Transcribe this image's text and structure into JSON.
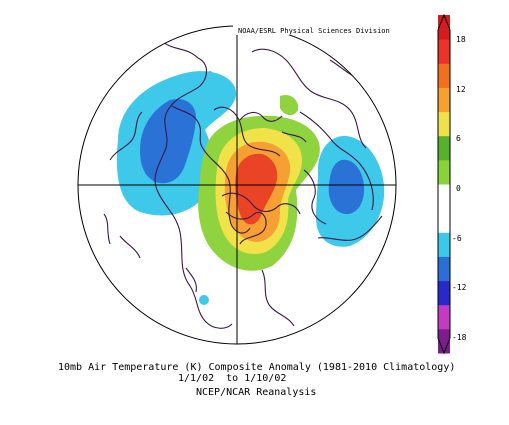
{
  "credit": "NOAA/ESRL Physical Sciences Division",
  "title": "10mb Air Temperature (K) Composite Anomaly (1981-2010 Climatology)",
  "dates": "1/1/02  to 1/10/02",
  "source": "NCEP/NCAR Reanalysis",
  "colorbar": {
    "labels": [
      "18",
      "12",
      "6",
      "0",
      "-6",
      "-12",
      "-18"
    ],
    "colors": [
      "#7a1e8a",
      "#c03cc0",
      "#2a28c8",
      "#2a6ed6",
      "#3cc8e8",
      "#ffffff",
      "#ffffff",
      "#8ad23a",
      "#58b030",
      "#f0e04a",
      "#f6a030",
      "#f07020",
      "#e8342a",
      "#d21e1e"
    ]
  },
  "map_colors": {
    "warm_core": "#ea4426",
    "orange": "#f6a033",
    "yellow": "#f2e24a",
    "green": "#8fd43e",
    "light_blue": "#3ec8ea",
    "mid_blue": "#2a72d6",
    "coastline": "#3a1848"
  }
}
